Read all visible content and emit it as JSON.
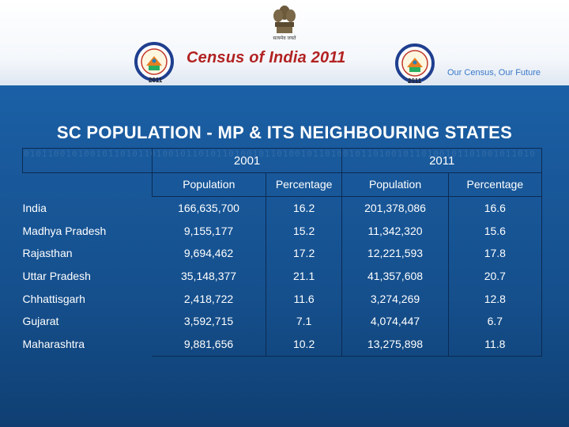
{
  "header": {
    "emblem_caption": "सत्यमेव जयते",
    "title": "Census of India 2011",
    "tagline": "Our Census,  Our Future",
    "logo_year": "2011",
    "colors": {
      "title": "#b22222",
      "tagline": "#3a78c8",
      "background": "#1a5ca0"
    }
  },
  "slide": {
    "heading": "SC POPULATION - MP & ITS NEIGHBOURING STATES"
  },
  "table": {
    "years": [
      "2001",
      "2011"
    ],
    "subheaders": [
      "Population",
      "Percentage",
      "Population",
      "Percentage"
    ],
    "rows": [
      {
        "name": "India",
        "pop2001": "166,635,700",
        "pct2001": "16.2",
        "pop2011": "201,378,086",
        "pct2011": "16.6"
      },
      {
        "name": "Madhya Pradesh",
        "pop2001": "9,155,177",
        "pct2001": "15.2",
        "pop2011": "11,342,320",
        "pct2011": "15.6"
      },
      {
        "name": "Rajasthan",
        "pop2001": "9,694,462",
        "pct2001": "17.2",
        "pop2011": "12,221,593",
        "pct2011": "17.8"
      },
      {
        "name": "Uttar Pradesh",
        "pop2001": "35,148,377",
        "pct2001": "21.1",
        "pop2011": "41,357,608",
        "pct2011": "20.7"
      },
      {
        "name": "Chhattisgarh",
        "pop2001": "2,418,722",
        "pct2001": "11.6",
        "pop2011": "3,274,269",
        "pct2011": "12.8"
      },
      {
        "name": "Gujarat",
        "pop2001": "3,592,715",
        "pct2001": "7.1",
        "pop2011": "4,074,447",
        "pct2011": "6.7"
      },
      {
        "name": "Maharashtra",
        "pop2001": "9,881,656",
        "pct2001": "10.2",
        "pop2011": "13,275,898",
        "pct2011": "11.8"
      }
    ]
  }
}
